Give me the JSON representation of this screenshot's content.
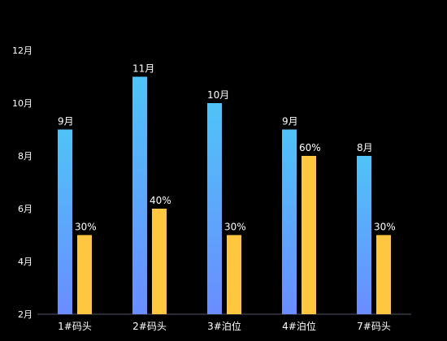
{
  "chart_data": {
    "type": "bar",
    "title": "",
    "xlabel": "",
    "ylabel": "",
    "ylim": [
      2,
      12
    ],
    "y_ticks": [
      2,
      4,
      6,
      8,
      10,
      12
    ],
    "y_tick_labels": [
      "2月",
      "4月",
      "6月",
      "8月",
      "10月",
      "12月"
    ],
    "grid": false,
    "categories": [
      "1#码头",
      "2#码头",
      "3#泊位",
      "4#泊位",
      "7#码头"
    ],
    "series": [
      {
        "values": [
          9,
          11,
          10,
          9,
          8
        ],
        "labels": [
          "9月",
          "11月",
          "10月",
          "9月",
          "8月"
        ],
        "color_top": "#4fc3f7",
        "color_bottom": "#6a8dff"
      },
      {
        "values": [
          5,
          6,
          5,
          8,
          5
        ],
        "labels": [
          "30%",
          "40%",
          "30%",
          "60%",
          "30%"
        ],
        "color": "#ffc640"
      }
    ],
    "colors": {
      "background": "#000000",
      "text": "#ffffff",
      "axis": "#555566"
    }
  }
}
